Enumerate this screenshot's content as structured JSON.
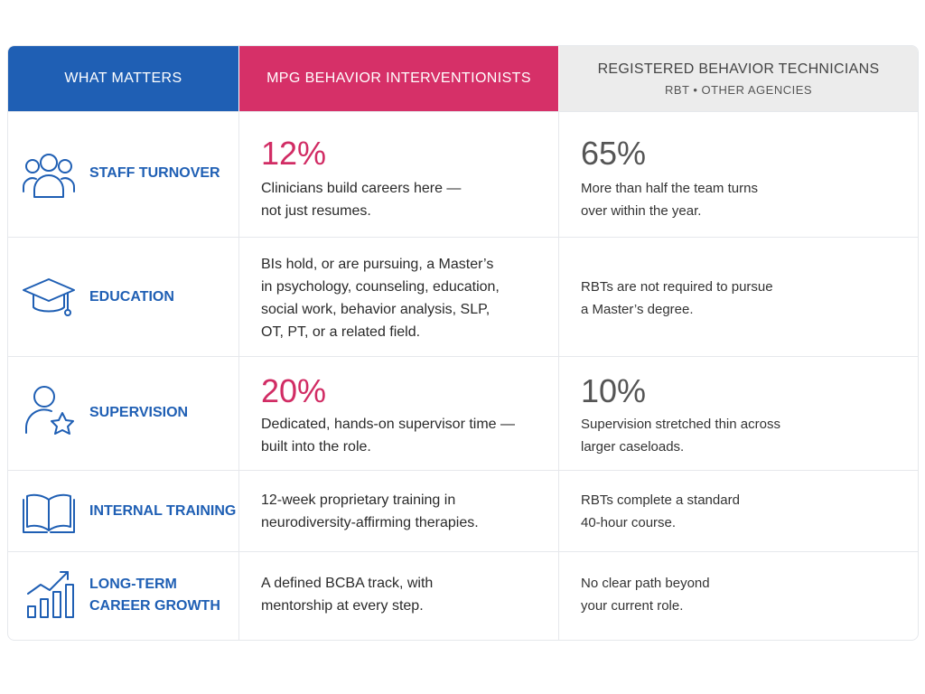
{
  "header": {
    "what_matters": "WHAT MATTERS",
    "mpg": "MPG BEHAVIOR INTERVENTIONISTS",
    "rbt_title": "REGISTERED BEHAVIOR TECHNICIANS",
    "rbt_subtitle": "RBT  •  OTHER AGENCIES"
  },
  "rows": [
    {
      "label": "STAFF TURNOVER",
      "icon": "people-group-icon",
      "mpg_stat": "12%",
      "mpg_text": [
        "Clinicians build careers here —",
        "not just resumes."
      ],
      "rbt_stat": "65%",
      "rbt_text": [
        "More than half the team turns",
        "over within the year."
      ]
    },
    {
      "label": "EDUCATION",
      "icon": "graduation-cap-icon",
      "mpg_text": [
        "BIs hold, or are pursuing, a Master’s",
        "in psychology, counseling, education,",
        "social work, behavior analysis, SLP,",
        "OT, PT, or a related field."
      ],
      "rbt_text": [
        "RBTs are not required to pursue",
        "a Master’s degree."
      ]
    },
    {
      "label": "SUPERVISION",
      "icon": "person-star-icon",
      "mpg_stat": "20%",
      "mpg_text": [
        "Dedicated, hands-on supervisor time —",
        "built into the role."
      ],
      "rbt_stat": "10%",
      "rbt_text": [
        "Supervision stretched thin across",
        "larger caseloads."
      ]
    },
    {
      "label": "INTERNAL TRAINING",
      "icon": "open-book-icon",
      "mpg_text": [
        "12-week proprietary training in",
        "neurodiversity-affirming therapies."
      ],
      "rbt_text": [
        "RBTs complete a standard",
        "40-hour course."
      ]
    },
    {
      "label": [
        "LONG-TERM",
        "CAREER GROWTH"
      ],
      "icon": "growth-chart-icon",
      "mpg_text": [
        "A defined BCBA track, with",
        "mentorship at every step."
      ],
      "rbt_text": [
        "No clear path beyond",
        "your current role."
      ]
    }
  ],
  "colors": {
    "blue": "#1f5fb4",
    "pink": "#d63068",
    "gray_header": "#ececec"
  }
}
